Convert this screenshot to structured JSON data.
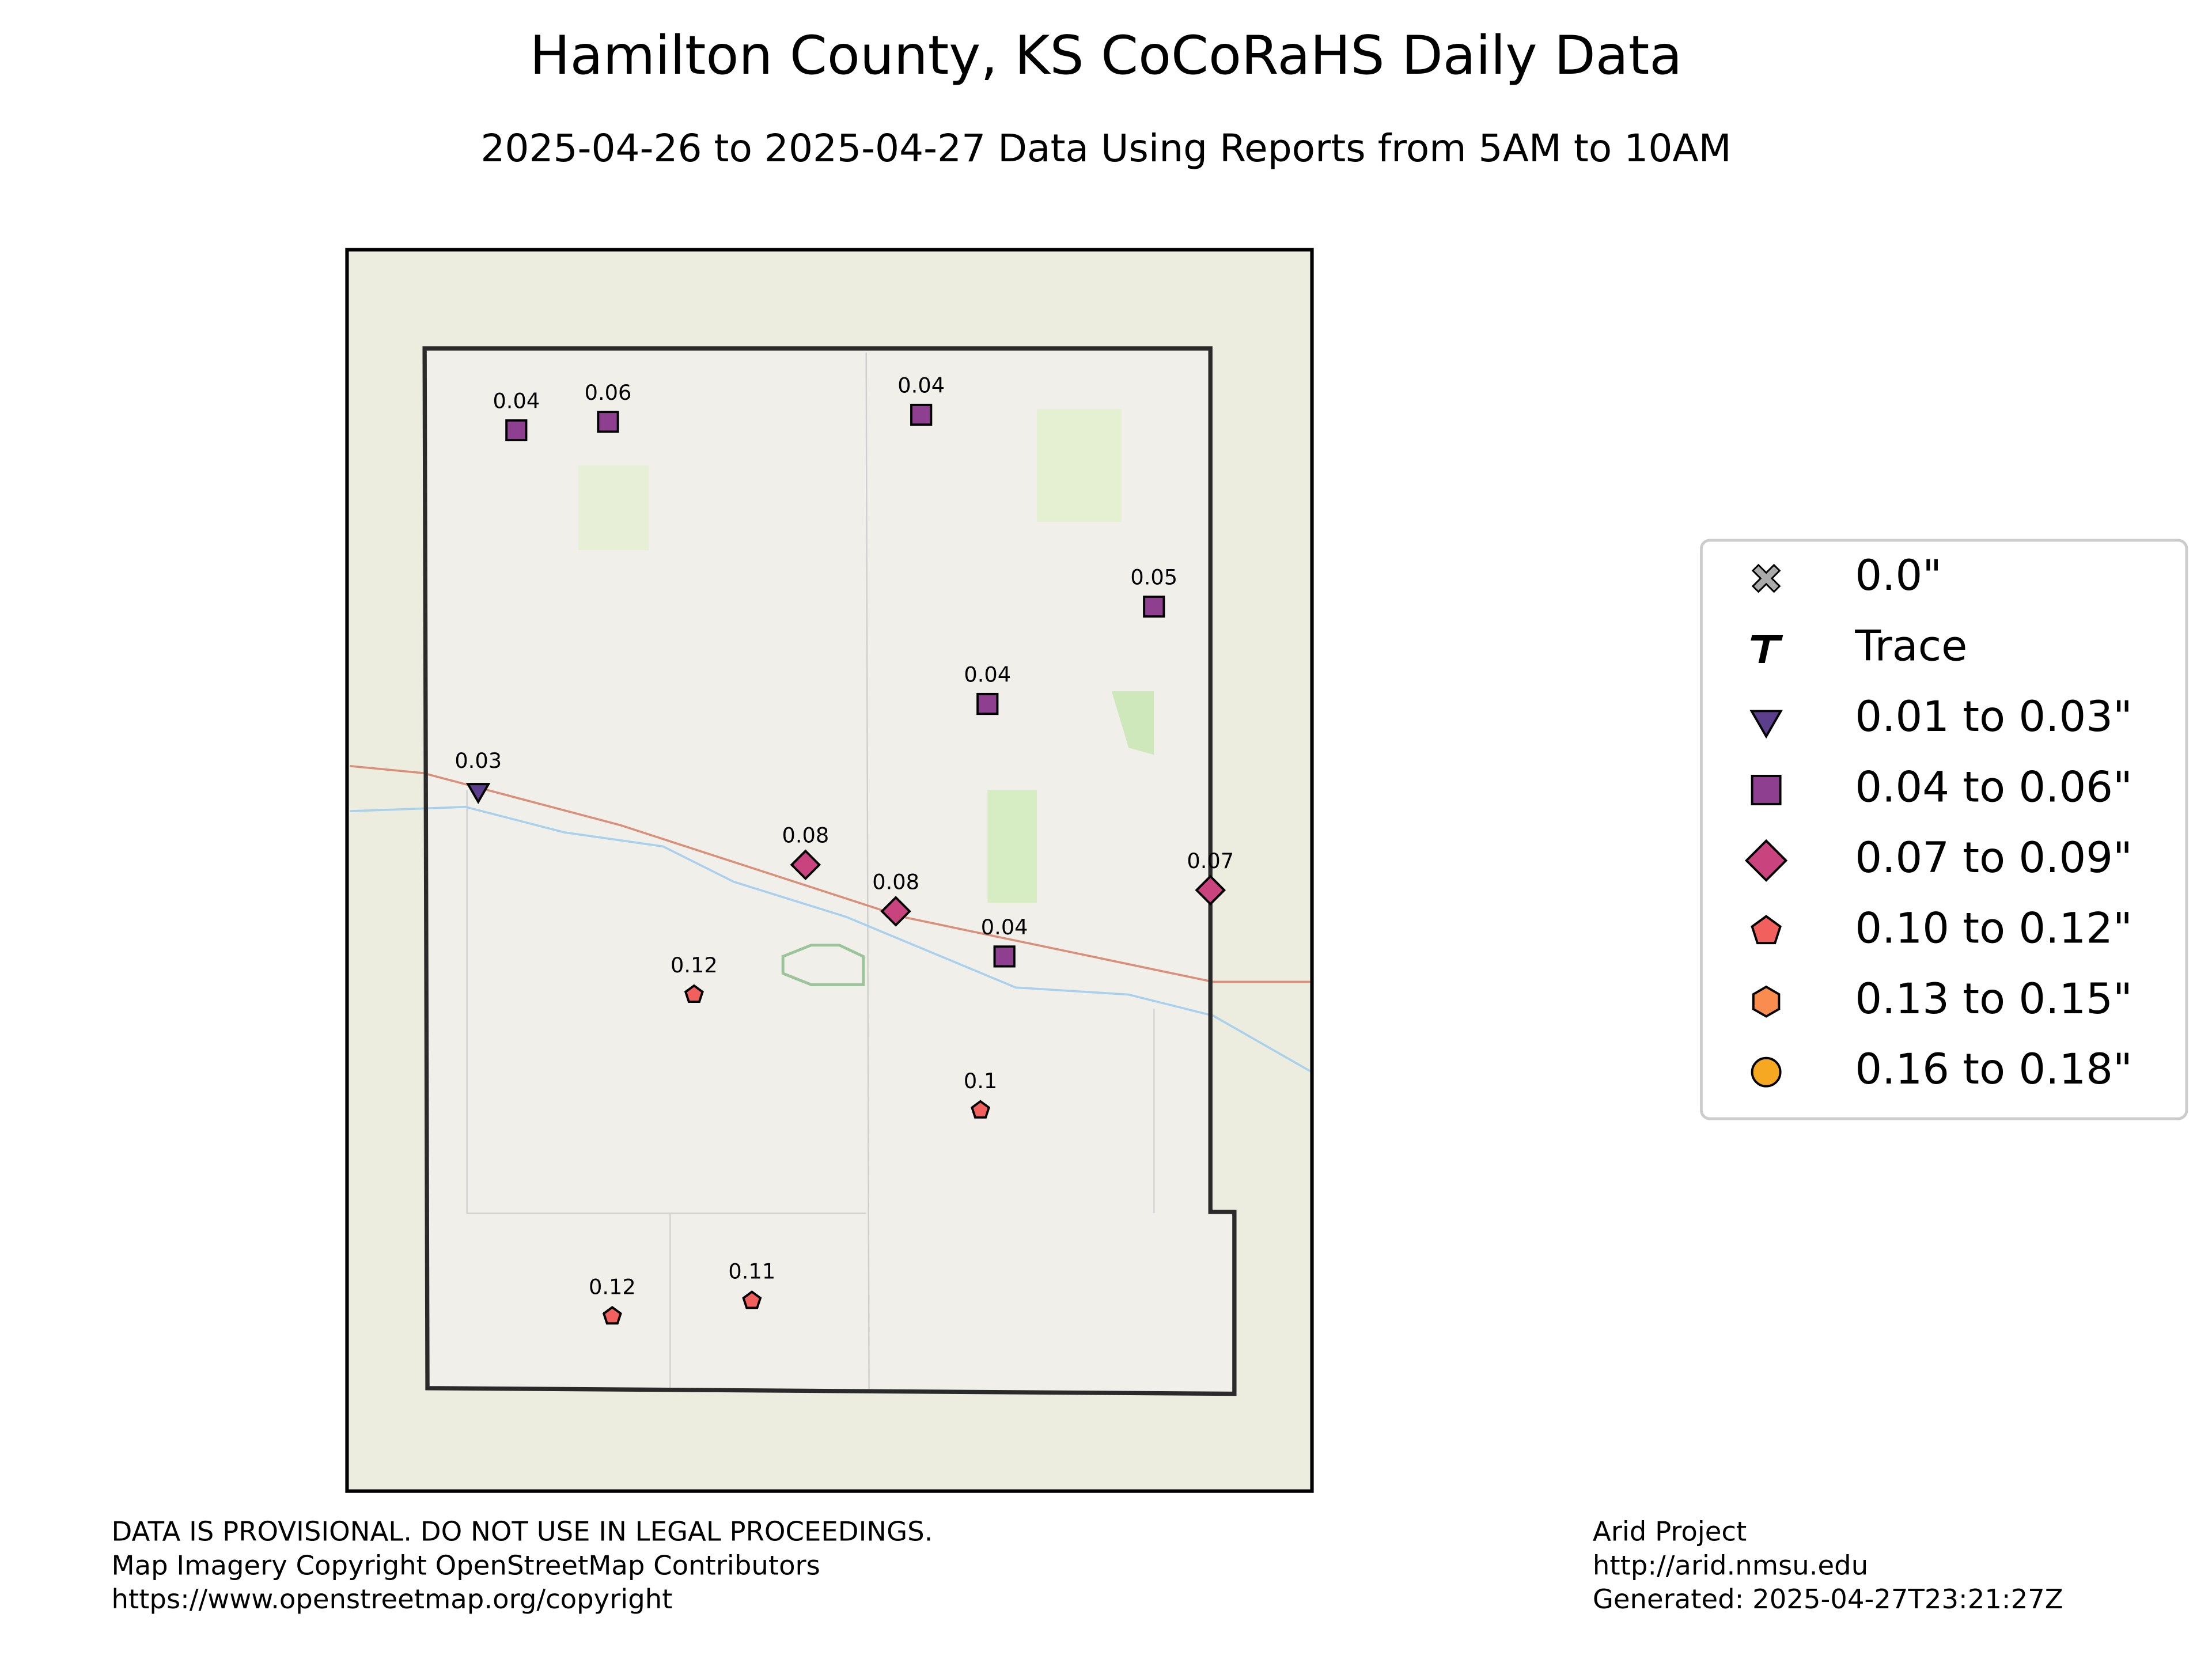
{
  "header": {
    "title": "Hamilton County, KS CoCoRaHS Daily Data",
    "subtitle": "2025-04-26 to 2025-04-27 Data Using Reports from 5AM to 10AM"
  },
  "legend": [
    {
      "label": "0.0\"",
      "shape": "x",
      "color": "#aaaaaa"
    },
    {
      "label": "Trace",
      "shape": "T",
      "color": "#000000"
    },
    {
      "label": "0.01 to 0.03\"",
      "shape": "triangle",
      "color": "#5b3f8c"
    },
    {
      "label": "0.04 to 0.06\"",
      "shape": "square",
      "color": "#8e3f8f"
    },
    {
      "label": "0.07 to 0.09\"",
      "shape": "diamond",
      "color": "#c9437f"
    },
    {
      "label": "0.10 to 0.12\"",
      "shape": "pentagon",
      "color": "#f1605d"
    },
    {
      "label": "0.13 to 0.15\"",
      "shape": "hexagon",
      "color": "#f98c4e"
    },
    {
      "label": "0.16 to 0.18\"",
      "shape": "circle",
      "color": "#f6a821"
    }
  ],
  "stations": [
    {
      "value": 0.04
    },
    {
      "value": 0.06
    },
    {
      "value": 0.04
    },
    {
      "value": 0.05
    },
    {
      "value": 0.04
    },
    {
      "value": 0.03
    },
    {
      "value": 0.08
    },
    {
      "value": 0.08
    },
    {
      "value": 0.07
    },
    {
      "value": 0.04
    },
    {
      "value": 0.12
    },
    {
      "value": 0.1
    },
    {
      "value": 0.12
    },
    {
      "value": 0.11
    }
  ],
  "footer": {
    "left": [
      "DATA IS PROVISIONAL. DO NOT USE IN LEGAL PROCEEDINGS.",
      "Map Imagery Copyright OpenStreetMap Contributors",
      "https://www.openstreetmap.org/copyright"
    ],
    "right": [
      "Arid Project",
      "http://arid.nmsu.edu",
      "Generated: 2025-04-27T23:21:27Z"
    ]
  }
}
